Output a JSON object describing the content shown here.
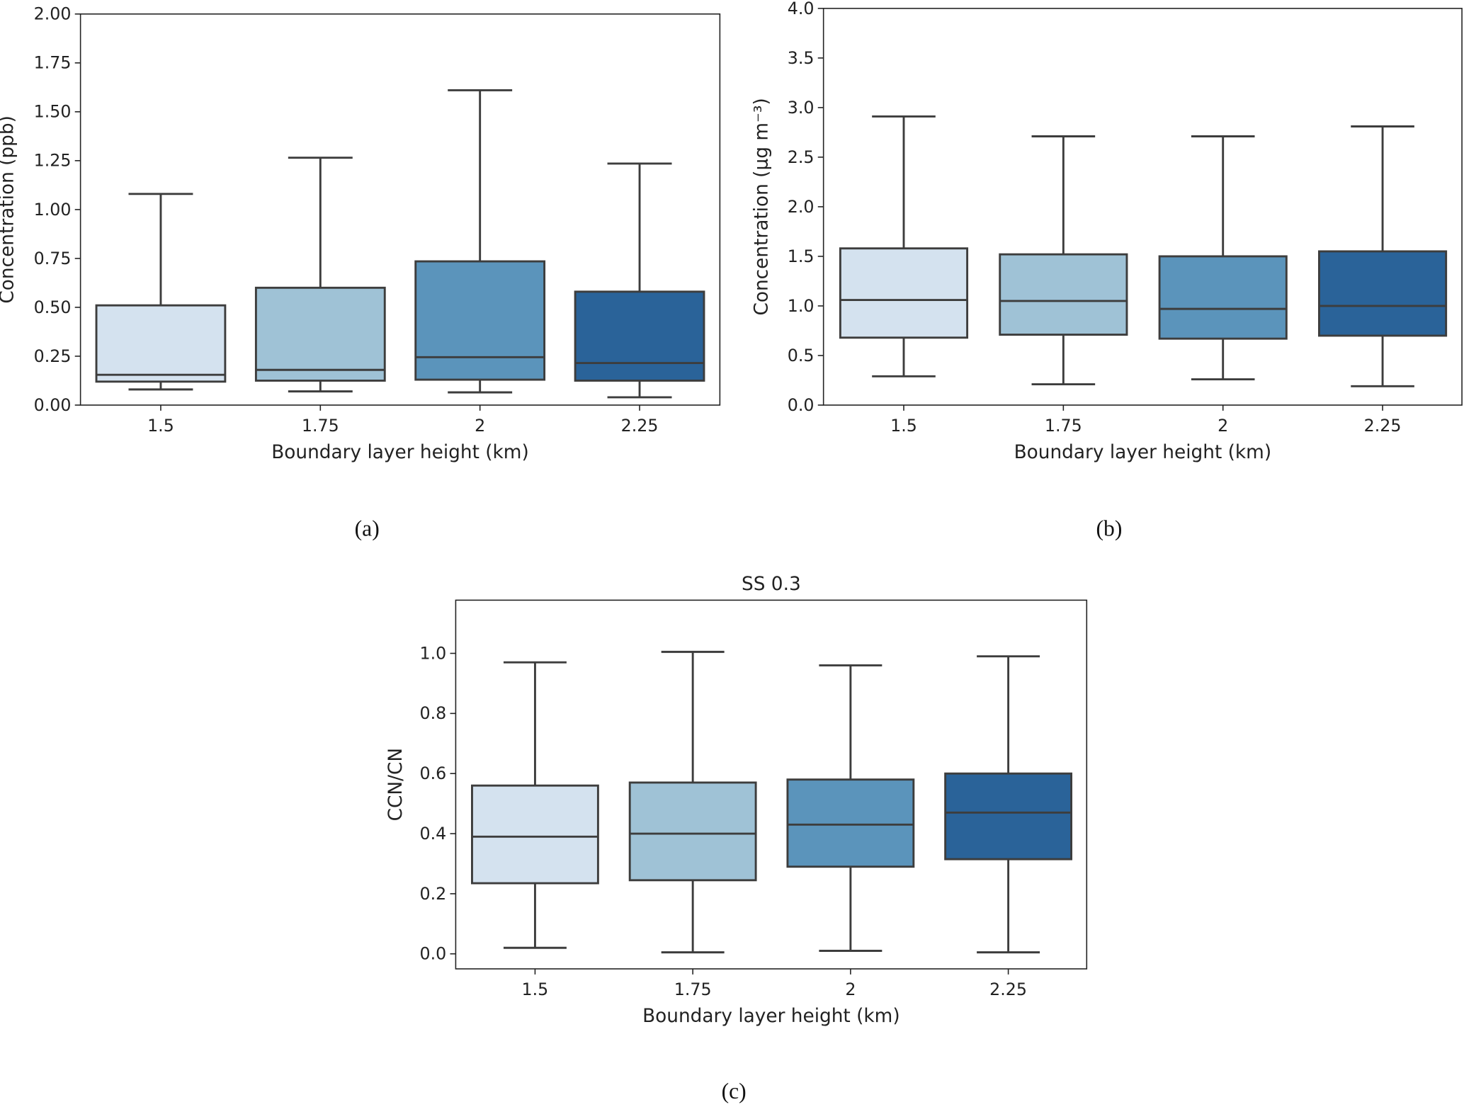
{
  "colors": [
    "#d4e2ef",
    "#9fc2d6",
    "#5b94bb",
    "#2a6399"
  ],
  "edge_color": "#3d3d3d",
  "chart_data": [
    {
      "type": "box",
      "caption": "(a)",
      "title": "",
      "xlabel": "Boundary layer height (km)",
      "ylabel": "Concentration (ppb)",
      "categories": [
        "1.5",
        "1.75",
        "2",
        "2.25"
      ],
      "ylim": [
        0,
        2.0
      ],
      "yticks": [
        "0.00",
        "0.25",
        "0.50",
        "0.75",
        "1.00",
        "1.25",
        "1.50",
        "1.75",
        "2.00"
      ],
      "ytick_values": [
        0,
        0.25,
        0.5,
        0.75,
        1.0,
        1.25,
        1.5,
        1.75,
        2.0
      ],
      "boxes": [
        {
          "whislo": 0.08,
          "q1": 0.12,
          "med": 0.155,
          "q3": 0.51,
          "whishi": 1.08
        },
        {
          "whislo": 0.07,
          "q1": 0.125,
          "med": 0.18,
          "q3": 0.6,
          "whishi": 1.265
        },
        {
          "whislo": 0.065,
          "q1": 0.13,
          "med": 0.245,
          "q3": 0.735,
          "whishi": 1.61
        },
        {
          "whislo": 0.04,
          "q1": 0.125,
          "med": 0.215,
          "q3": 0.58,
          "whishi": 1.235
        }
      ]
    },
    {
      "type": "box",
      "caption": "(b)",
      "title": "",
      "xlabel": "Boundary layer height (km)",
      "ylabel": "Concentration (µg m⁻³)",
      "categories": [
        "1.5",
        "1.75",
        "2",
        "2.25"
      ],
      "ylim": [
        0,
        4.0
      ],
      "yticks": [
        "0.0",
        "0.5",
        "1.0",
        "1.5",
        "2.0",
        "2.5",
        "3.0",
        "3.5",
        "4.0"
      ],
      "ytick_values": [
        0,
        0.5,
        1.0,
        1.5,
        2.0,
        2.5,
        3.0,
        3.5,
        4.0
      ],
      "boxes": [
        {
          "whislo": 0.29,
          "q1": 0.68,
          "med": 1.06,
          "q3": 1.58,
          "whishi": 2.91
        },
        {
          "whislo": 0.21,
          "q1": 0.71,
          "med": 1.05,
          "q3": 1.52,
          "whishi": 2.71
        },
        {
          "whislo": 0.26,
          "q1": 0.67,
          "med": 0.97,
          "q3": 1.5,
          "whishi": 2.71
        },
        {
          "whislo": 0.19,
          "q1": 0.7,
          "med": 1.0,
          "q3": 1.55,
          "whishi": 2.81
        }
      ]
    },
    {
      "type": "box",
      "caption": "(c)",
      "title": "SS 0.3",
      "xlabel": "Boundary layer height (km)",
      "ylabel": "CCN/CN",
      "categories": [
        "1.5",
        "1.75",
        "2",
        "2.25"
      ],
      "ylim": [
        -0.05,
        1.177
      ],
      "yticks": [
        "0.0",
        "0.2",
        "0.4",
        "0.6",
        "0.8",
        "1.0"
      ],
      "ytick_values": [
        0,
        0.2,
        0.4,
        0.6,
        0.8,
        1.0
      ],
      "boxes": [
        {
          "whislo": 0.02,
          "q1": 0.235,
          "med": 0.39,
          "q3": 0.56,
          "whishi": 0.97
        },
        {
          "whislo": 0.005,
          "q1": 0.245,
          "med": 0.4,
          "q3": 0.57,
          "whishi": 1.005
        },
        {
          "whislo": 0.01,
          "q1": 0.29,
          "med": 0.43,
          "q3": 0.58,
          "whishi": 0.96
        },
        {
          "whislo": 0.005,
          "q1": 0.315,
          "med": 0.47,
          "q3": 0.6,
          "whishi": 0.99
        }
      ]
    }
  ]
}
